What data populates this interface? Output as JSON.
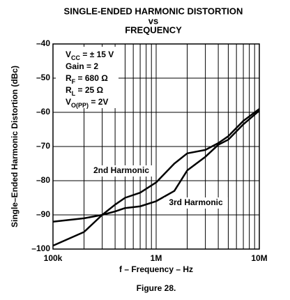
{
  "chart_data": {
    "type": "line",
    "title": [
      "SINGLE-ENDED HARMONIC DISTORTION",
      "vs",
      "FREQUENCY"
    ],
    "xlabel": "f – Frequency – Hz",
    "ylabel": "Single–Ended Harmonic Distortion (dBc)",
    "caption": "Figure 28.",
    "log_x": true,
    "grid": true,
    "xlim": [
      100000,
      10000000
    ],
    "ylim": [
      -100,
      -40
    ],
    "xticks": [
      {
        "value": 100000,
        "label": "100k"
      },
      {
        "value": 1000000,
        "label": "1M"
      },
      {
        "value": 10000000,
        "label": "10M"
      }
    ],
    "xminorticks": [
      200000,
      300000,
      400000,
      500000,
      600000,
      700000,
      800000,
      900000,
      2000000,
      3000000,
      4000000,
      5000000,
      6000000,
      7000000,
      8000000,
      9000000
    ],
    "yticks": [
      {
        "value": -40,
        "label": "–40"
      },
      {
        "value": -50,
        "label": "–50"
      },
      {
        "value": -60,
        "label": "–60"
      },
      {
        "value": -70,
        "label": "–70"
      },
      {
        "value": -80,
        "label": "–80"
      },
      {
        "value": -90,
        "label": "–90"
      },
      {
        "value": -100,
        "label": "–100"
      }
    ],
    "conditions": [
      [
        "V",
        "CC",
        " = ± 15 V"
      ],
      [
        "Gain = 2"
      ],
      [
        "R",
        "F",
        " = 680 Ω"
      ],
      [
        "R",
        "L",
        " = 25 Ω"
      ],
      [
        "V",
        "O(PP)",
        " = 2V"
      ]
    ],
    "x": [
      100000,
      200000,
      300000,
      400000,
      500000,
      700000,
      1000000,
      1500000,
      2000000,
      3000000,
      4000000,
      5000000,
      7000000,
      10000000
    ],
    "series": [
      {
        "name": "2nd Harmonic",
        "color": "#000000",
        "values": [
          -99,
          -95,
          -90,
          -87,
          -85,
          -83.5,
          -80.5,
          -75,
          -72,
          -71,
          -69,
          -67,
          -62.5,
          -59
        ]
      },
      {
        "name": "3rd Harmonic",
        "color": "#000000",
        "values": [
          -92,
          -91,
          -90,
          -89,
          -88,
          -87.5,
          -86,
          -83,
          -77,
          -73,
          -69.5,
          -68,
          -63.5,
          -59.5
        ]
      }
    ]
  }
}
